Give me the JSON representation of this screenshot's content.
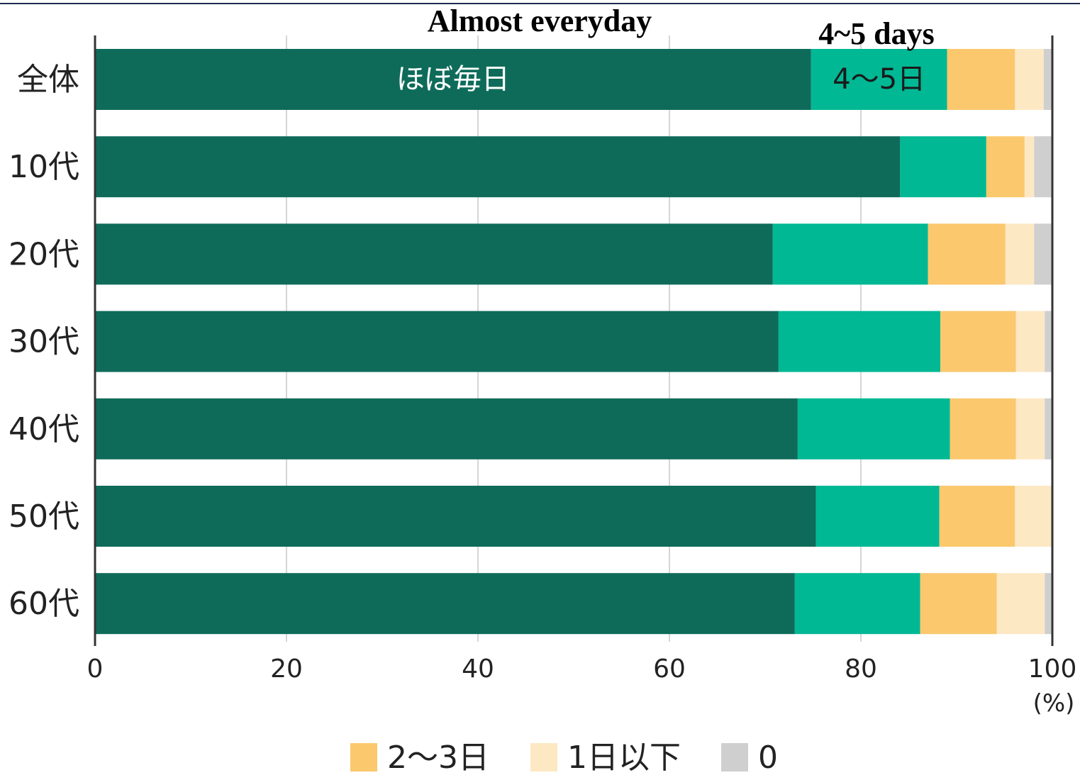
{
  "chart_data": {
    "type": "bar",
    "orientation": "horizontal",
    "stacked": true,
    "categories": [
      "全体",
      "10代",
      "20代",
      "30代",
      "40代",
      "50代",
      "60代"
    ],
    "series": [
      {
        "name": "ほぼ毎日",
        "values": [
          74.8,
          84.1,
          70.8,
          71.4,
          73.4,
          75.3,
          73.1
        ],
        "color": "#0e6b5a"
      },
      {
        "name": "4〜5日",
        "values": [
          14.2,
          9.0,
          16.2,
          16.9,
          15.9,
          12.9,
          13.1
        ],
        "color": "#00b894"
      },
      {
        "name": "2〜3日",
        "values": [
          7.1,
          4.0,
          8.1,
          7.9,
          6.9,
          7.9,
          8.0
        ],
        "color": "#fbc86e"
      },
      {
        "name": "1日以下",
        "values": [
          3.0,
          1.0,
          3.0,
          3.0,
          3.0,
          3.9,
          5.0
        ],
        "color": "#fde8c4"
      },
      {
        "name": "0",
        "values": [
          0.9,
          1.9,
          1.9,
          0.8,
          0.8,
          0.0,
          0.8
        ],
        "color": "#cfcfcf"
      }
    ],
    "xlim": [
      0,
      100
    ],
    "xticks": [
      "0",
      "20",
      "40",
      "60",
      "80",
      "100"
    ],
    "xunit": "(%)",
    "grid": true,
    "in_bar_labels": {
      "series_0": "ほぼ毎日",
      "series_1": "4〜5日"
    },
    "legend": {
      "placement": "bottom",
      "entries": [
        {
          "label": "2〜3日",
          "color": "#fbc86e"
        },
        {
          "label": "1日以下",
          "color": "#fde8c4"
        },
        {
          "label": "0",
          "color": "#cfcfcf"
        }
      ]
    },
    "annotations": [
      "Almost everyday",
      "4~5 days"
    ]
  }
}
